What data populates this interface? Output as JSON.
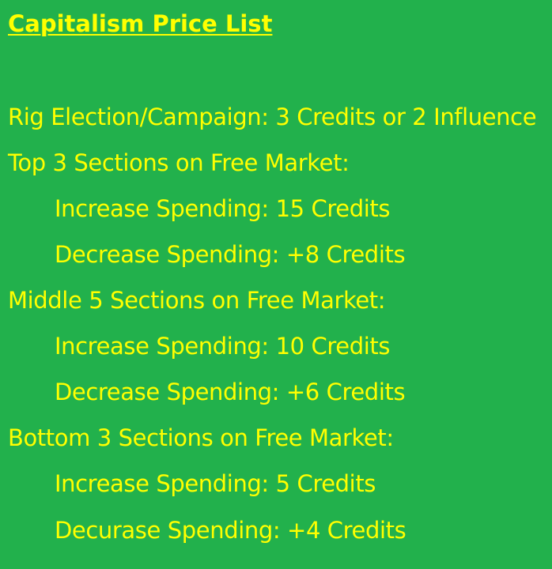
{
  "colors": {
    "background": "#22b14c",
    "text": "#ffff00"
  },
  "document": {
    "title": "Capitalism Price List",
    "lines": [
      "Rig Election/Campaign: 3 Credits or 2 Influence",
      "Top 3 Sections on Free Market:",
      "Increase Spending: 15 Credits",
      "Decrease Spending: +8 Credits",
      "Middle 5 Sections on Free Market:",
      "Increase Spending: 10 Credits",
      "Decrease Spending: +6 Credits",
      "Bottom 3 Sections on Free Market:",
      "Increase Spending: 5 Credits",
      "Decurase Spending: +4 Credits"
    ]
  }
}
